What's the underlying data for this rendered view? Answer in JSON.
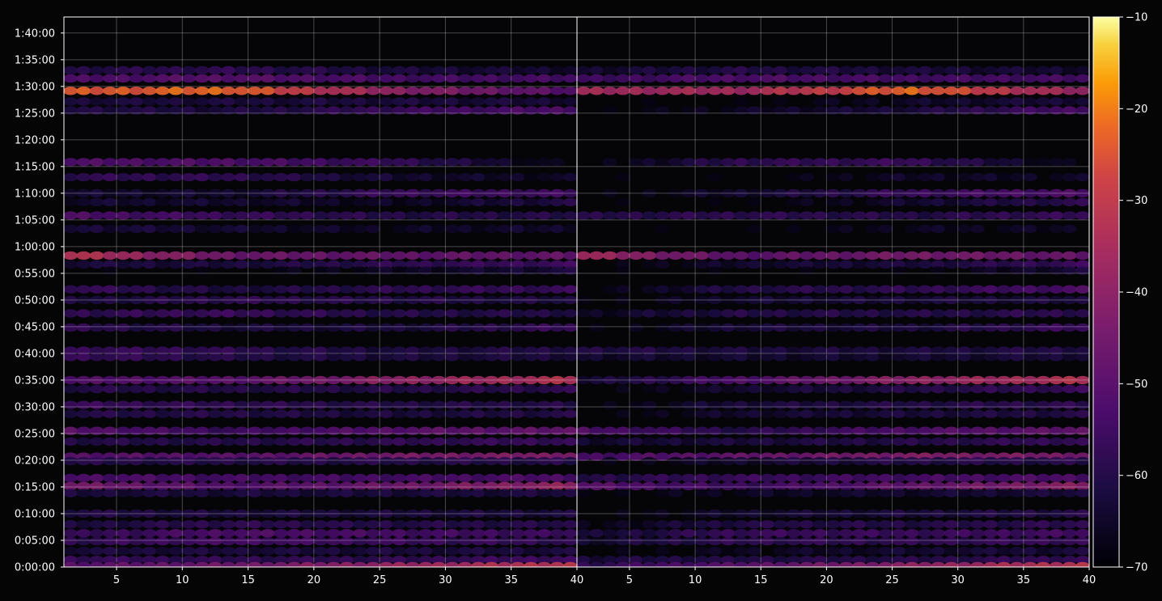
{
  "chart_data": {
    "type": "heatmap",
    "title": "",
    "xlabel": "",
    "ylabel": "",
    "x_tick_labels_left": [
      "5",
      "10",
      "15",
      "20",
      "25",
      "30",
      "35",
      "40"
    ],
    "x_tick_labels_right": [
      "5",
      "10",
      "15",
      "20",
      "25",
      "30",
      "35",
      "40"
    ],
    "xlim_left": [
      1,
      40
    ],
    "xlim_right": [
      1,
      40
    ],
    "x_ticks": [
      5,
      10,
      15,
      20,
      25,
      30,
      35,
      40
    ],
    "ylim_seconds": [
      0,
      6180
    ],
    "y_ticks_seconds": [
      0,
      300,
      600,
      900,
      1200,
      1500,
      1800,
      2100,
      2400,
      2700,
      3000,
      3300,
      3600,
      3900,
      4200,
      4500,
      4800,
      5100,
      5400,
      5700,
      6000
    ],
    "y_tick_labels": [
      "0:00:00",
      "0:05:00",
      "0:10:00",
      "0:15:00",
      "0:20:00",
      "0:25:00",
      "0:30:00",
      "0:35:00",
      "0:40:00",
      "0:45:00",
      "0:50:00",
      "0:55:00",
      "1:00:00",
      "1:05:00",
      "1:10:00",
      "1:15:00",
      "1:20:00",
      "1:25:00",
      "1:30:00",
      "1:35:00",
      "1:40:00"
    ],
    "grid": true,
    "colormap": "inferno",
    "colorbar": {
      "range": [
        -70,
        -10
      ],
      "ticks": [
        -70,
        -60,
        -50,
        -40,
        -30,
        -20,
        -10
      ],
      "tick_labels": [
        "−70",
        "−60",
        "−50",
        "−40",
        "−30",
        "−20",
        "−10"
      ]
    },
    "bands": [
      {
        "t": 5350,
        "left": [
          -25,
          -22,
          -40,
          -52
        ],
        "right": [
          -36,
          -36,
          -22,
          -40
        ]
      },
      {
        "t": 5490,
        "left": [
          -53,
          -50,
          -54,
          -54
        ],
        "right": [
          -56,
          -52,
          -54,
          -54
        ]
      },
      {
        "t": 5580,
        "left": [
          -60,
          -58,
          -62,
          -64
        ],
        "right": [
          -64,
          -60,
          -62,
          -64
        ]
      },
      {
        "t": 5130,
        "left": [
          -60,
          -62,
          -56,
          -52
        ],
        "right": [
          -70,
          -66,
          -62,
          -52
        ]
      },
      {
        "t": 5230,
        "left": [
          -62,
          -62,
          -62,
          -63
        ],
        "right": [
          -70,
          -70,
          -65,
          -62
        ]
      },
      {
        "t": 4550,
        "left": [
          -52,
          -52,
          -57,
          -70
        ],
        "right": [
          -70,
          -58,
          -56,
          -70
        ]
      },
      {
        "t": 4380,
        "left": [
          -58,
          -58,
          -64,
          -66
        ],
        "right": [
          -70,
          -70,
          -65,
          -66
        ]
      },
      {
        "t": 4200,
        "left": [
          -64,
          -64,
          -56,
          -55
        ],
        "right": [
          -70,
          -64,
          -56,
          -52
        ]
      },
      {
        "t": 4100,
        "left": [
          -64,
          -64,
          -66,
          -60
        ],
        "right": [
          -70,
          -70,
          -64,
          -58
        ]
      },
      {
        "t": 3950,
        "left": [
          -52,
          -56,
          -60,
          -60
        ],
        "right": [
          -60,
          -58,
          -60,
          -56
        ]
      },
      {
        "t": 3800,
        "left": [
          -62,
          -64,
          -66,
          -64
        ],
        "right": [
          -70,
          -70,
          -66,
          -66
        ]
      },
      {
        "t": 3500,
        "left": [
          -32,
          -46,
          -48,
          -48
        ],
        "right": [
          -36,
          -50,
          -44,
          -48
        ]
      },
      {
        "t": 3400,
        "left": [
          -62,
          -62,
          -58,
          -55
        ],
        "right": [
          -70,
          -64,
          -62,
          -55
        ]
      },
      {
        "t": 3330,
        "left": [
          -70,
          -70,
          -66,
          -62
        ],
        "right": [
          -70,
          -70,
          -70,
          -62
        ]
      },
      {
        "t": 3120,
        "left": [
          -56,
          -62,
          -58,
          -56
        ],
        "right": [
          -70,
          -60,
          -58,
          -52
        ]
      },
      {
        "t": 3000,
        "left": [
          -62,
          -58,
          -60,
          -62
        ],
        "right": [
          -70,
          -64,
          -62,
          -62
        ]
      },
      {
        "t": 2850,
        "left": [
          -58,
          -56,
          -60,
          -60
        ],
        "right": [
          -66,
          -60,
          -60,
          -58
        ]
      },
      {
        "t": 2690,
        "left": [
          -58,
          -62,
          -62,
          -56
        ],
        "right": [
          -70,
          -62,
          -62,
          -55
        ]
      },
      {
        "t": 2430,
        "left": [
          -56,
          -58,
          -62,
          -60
        ],
        "right": [
          -60,
          -62,
          -62,
          -60
        ]
      },
      {
        "t": 2360,
        "left": [
          -56,
          -60,
          -62,
          -62
        ],
        "right": [
          -64,
          -64,
          -64,
          -62
        ]
      },
      {
        "t": 2100,
        "left": [
          -52,
          -50,
          -40,
          -32
        ],
        "right": [
          -64,
          -52,
          -40,
          -32
        ]
      },
      {
        "t": 2000,
        "left": [
          -60,
          -60,
          -60,
          -58
        ],
        "right": [
          -70,
          -64,
          -60,
          -56
        ]
      },
      {
        "t": 1820,
        "left": [
          -56,
          -58,
          -60,
          -60
        ],
        "right": [
          -70,
          -62,
          -60,
          -58
        ]
      },
      {
        "t": 1720,
        "left": [
          -60,
          -60,
          -62,
          -60
        ],
        "right": [
          -70,
          -64,
          -62,
          -60
        ]
      },
      {
        "t": 1530,
        "left": [
          -50,
          -56,
          -50,
          -48
        ],
        "right": [
          -52,
          -60,
          -52,
          -48
        ]
      },
      {
        "t": 1410,
        "left": [
          -60,
          -60,
          -58,
          -56
        ],
        "right": [
          -64,
          -62,
          -60,
          -56
        ]
      },
      {
        "t": 1240,
        "left": [
          -50,
          -50,
          -44,
          -42
        ],
        "right": [
          -54,
          -48,
          -42,
          -44
        ]
      },
      {
        "t": 1190,
        "left": [
          -60,
          -60,
          -60,
          -60
        ],
        "right": [
          -70,
          -64,
          -60,
          -60
        ]
      },
      {
        "t": 1000,
        "left": [
          -52,
          -54,
          -54,
          -52
        ],
        "right": [
          -60,
          -56,
          -54,
          -52
        ]
      },
      {
        "t": 910,
        "left": [
          -44,
          -52,
          -46,
          -38
        ],
        "right": [
          -50,
          -56,
          -48,
          -40
        ]
      },
      {
        "t": 830,
        "left": [
          -62,
          -62,
          -62,
          -62
        ],
        "right": [
          -70,
          -66,
          -64,
          -62
        ]
      },
      {
        "t": 600,
        "left": [
          -60,
          -62,
          -62,
          -62
        ],
        "right": [
          -70,
          -64,
          -62,
          -60
        ]
      },
      {
        "t": 480,
        "left": [
          -62,
          -58,
          -60,
          -60
        ],
        "right": [
          -68,
          -60,
          -60,
          -58
        ]
      },
      {
        "t": 380,
        "left": [
          -58,
          -52,
          -54,
          -56
        ],
        "right": [
          -64,
          -56,
          -56,
          -54
        ]
      },
      {
        "t": 290,
        "left": [
          -58,
          -54,
          -56,
          -58
        ],
        "right": [
          -64,
          -58,
          -58,
          -56
        ]
      },
      {
        "t": 180,
        "left": [
          -62,
          -62,
          -62,
          -62
        ],
        "right": [
          -70,
          -66,
          -64,
          -62
        ]
      },
      {
        "t": 80,
        "left": [
          -56,
          -58,
          -58,
          -54
        ],
        "right": [
          -62,
          -60,
          -60,
          -56
        ]
      },
      {
        "t": 10,
        "left": [
          -50,
          -46,
          -38,
          -30
        ],
        "right": [
          -58,
          -50,
          -40,
          -30
        ]
      }
    ]
  }
}
